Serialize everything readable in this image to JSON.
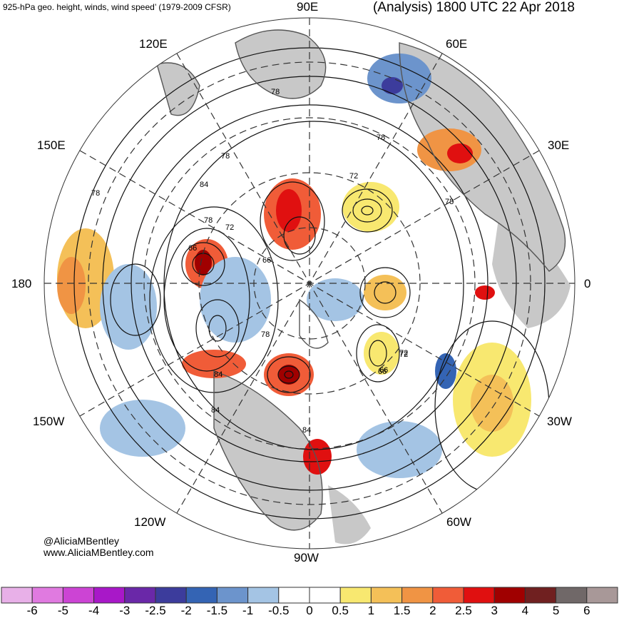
{
  "header": {
    "left_title": "925-hPa geo. height, winds, wind speed’ (1979-2009 CFSR)",
    "right_title": "(Analysis) 1800 UTC 22 Apr 2018"
  },
  "longitude_labels": {
    "n": "90E",
    "ne": "60E",
    "ene": "30E",
    "e": "0",
    "ese": "30W",
    "se": "60W",
    "s": "90W",
    "sw": "120W",
    "wsw": "150W",
    "w": "180",
    "wnw": "150E",
    "nw": "120E"
  },
  "contour_labels": [
    "78",
    "78",
    "84",
    "78",
    "72",
    "66",
    "66",
    "72",
    "78",
    "78",
    "72",
    "66",
    "84",
    "78",
    "84",
    "84",
    "72",
    "66",
    "78"
  ],
  "credits": {
    "handle": "@AliciaMBentley",
    "website": "www.AliciaMBentley.com"
  },
  "colorbar": {
    "labels": [
      "-6",
      "-5",
      "-4",
      "-3",
      "-2.5",
      "-2",
      "-1.5",
      "-1",
      "-0.5",
      "0",
      "0.5",
      "1",
      "1.5",
      "2",
      "2.5",
      "3",
      "4",
      "5",
      "6"
    ],
    "colors": [
      "#e8b0e8",
      "#e07ae0",
      "#cc44d4",
      "#a818c8",
      "#6a28a8",
      "#3c3c9c",
      "#3464b4",
      "#6c94cc",
      "#a4c4e4",
      "#ffffff",
      "#ffffff",
      "#f8e870",
      "#f4c058",
      "#f09444",
      "#f05c38",
      "#e01010",
      "#a00000",
      "#702020",
      "#706868",
      "#a89898"
    ]
  }
}
